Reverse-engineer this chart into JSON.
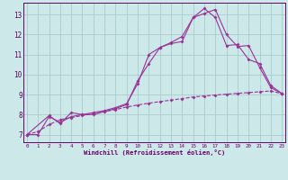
{
  "xlabel": "Windchill (Refroidissement éolien,°C)",
  "bg_color": "#cce8e8",
  "grid_color": "#aacccc",
  "line_color": "#993399",
  "text_color": "#660066",
  "xlim": [
    -0.3,
    23.3
  ],
  "ylim": [
    6.6,
    13.6
  ],
  "xticks": [
    0,
    1,
    2,
    3,
    4,
    5,
    6,
    7,
    8,
    9,
    10,
    11,
    12,
    13,
    14,
    15,
    16,
    17,
    18,
    19,
    20,
    21,
    22,
    23
  ],
  "yticks": [
    7,
    8,
    9,
    10,
    11,
    12,
    13
  ],
  "line1_x": [
    0,
    1,
    2,
    3,
    4,
    5,
    6,
    7,
    8,
    9,
    10,
    11,
    12,
    13,
    14,
    15,
    16,
    17,
    18,
    19,
    20,
    21,
    22,
    23
  ],
  "line1_y": [
    7.0,
    7.15,
    7.5,
    7.75,
    7.85,
    7.95,
    8.05,
    8.15,
    8.25,
    8.38,
    8.48,
    8.57,
    8.65,
    8.72,
    8.8,
    8.88,
    8.93,
    8.98,
    9.02,
    9.06,
    9.1,
    9.14,
    9.18,
    9.05
  ],
  "line2_x": [
    0,
    1,
    2,
    3,
    4,
    5,
    6,
    7,
    8,
    9,
    10,
    11,
    12,
    13,
    14,
    15,
    16,
    17,
    18,
    19,
    20,
    21,
    22,
    23
  ],
  "line2_y": [
    7.0,
    7.0,
    7.9,
    7.6,
    7.9,
    8.0,
    8.0,
    8.15,
    8.3,
    8.5,
    9.7,
    10.55,
    11.35,
    11.6,
    11.9,
    12.85,
    13.3,
    12.85,
    11.45,
    11.5,
    10.75,
    10.55,
    9.45,
    9.05
  ],
  "line3_x": [
    0,
    2,
    3,
    4,
    5,
    6,
    7,
    8,
    9,
    10,
    11,
    12,
    13,
    14,
    15,
    16,
    17,
    18,
    19,
    20,
    21,
    22,
    23
  ],
  "line3_y": [
    7.0,
    7.95,
    7.55,
    8.1,
    8.0,
    8.1,
    8.2,
    8.35,
    8.55,
    9.55,
    11.0,
    11.35,
    11.55,
    11.65,
    12.85,
    13.05,
    13.25,
    12.0,
    11.4,
    11.45,
    10.35,
    9.35,
    9.05
  ]
}
